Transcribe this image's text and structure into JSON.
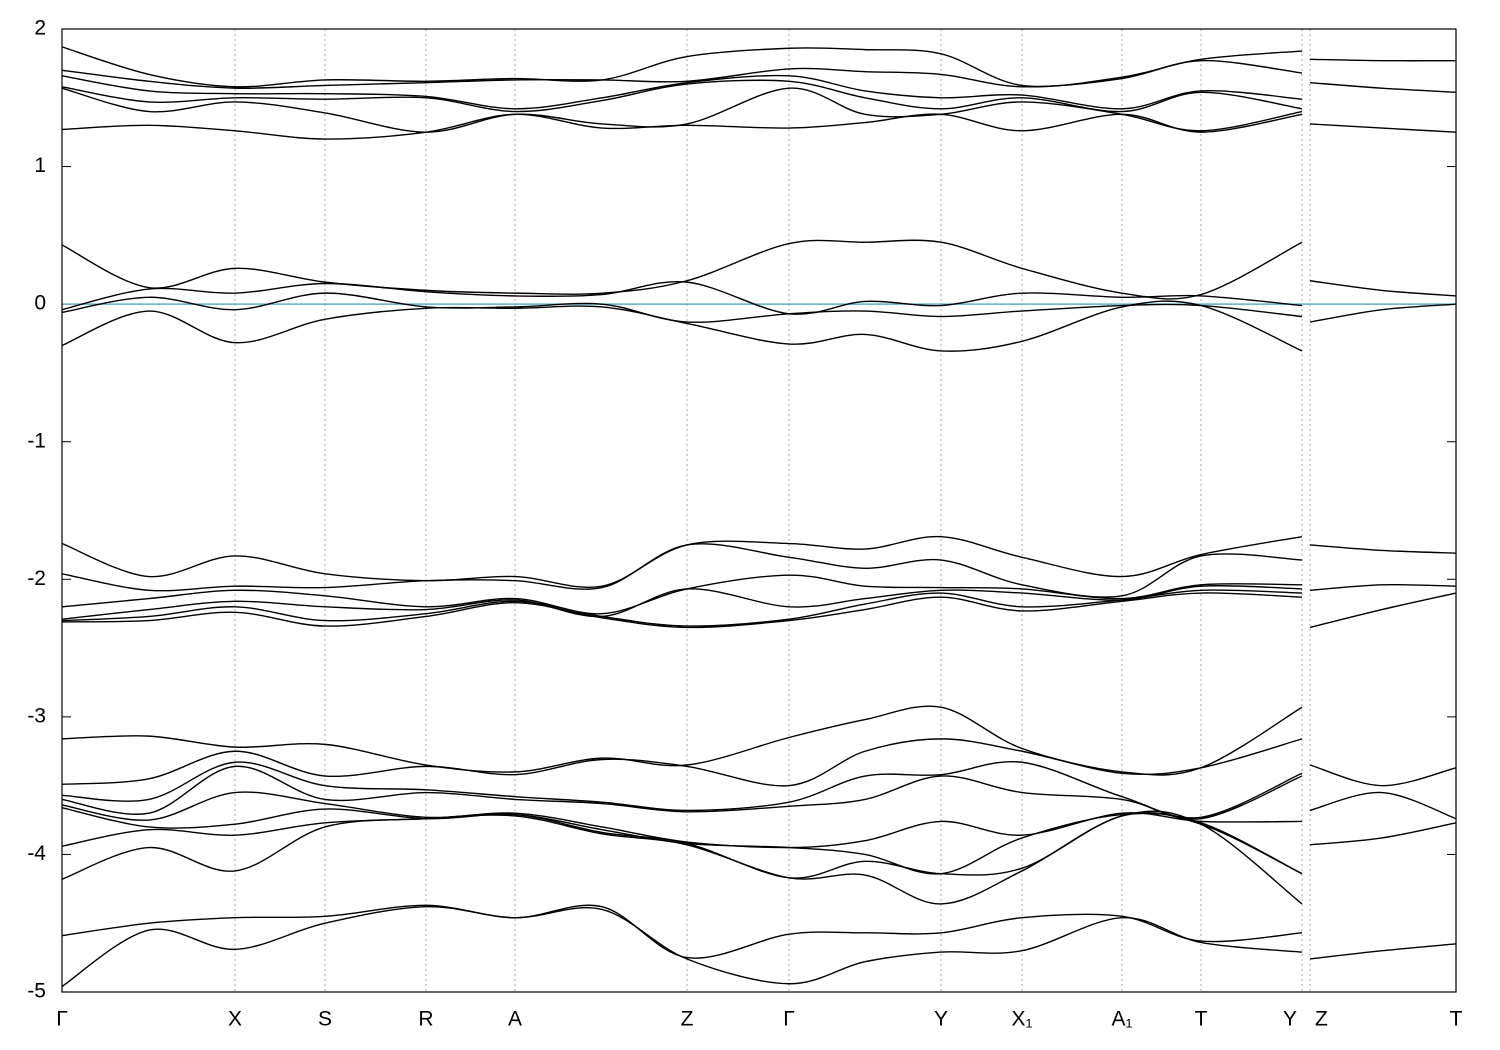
{
  "chart_data": {
    "type": "line",
    "color": "#000000",
    "hline": {
      "value": 0,
      "color": "#5fb0c8"
    },
    "xlim": [
      0,
      13.94
    ],
    "xticks": [
      {
        "value": 0,
        "label": "Γ"
      },
      {
        "value": 1.73,
        "label": "X"
      },
      {
        "value": 2.63,
        "label": "S"
      },
      {
        "value": 3.64,
        "label": "R"
      },
      {
        "value": 4.53,
        "label": "A"
      },
      {
        "value": 6.25,
        "label": "Z"
      },
      {
        "value": 7.27,
        "label": "Γ"
      },
      {
        "value": 8.79,
        "label": "Y"
      },
      {
        "value": 9.6,
        "label": "X₁"
      },
      {
        "value": 10.6,
        "label": "A₁"
      },
      {
        "value": 11.39,
        "label": "T"
      },
      {
        "value": 12.4,
        "label": "Y"
      },
      {
        "value": 12.48,
        "label": "Z"
      },
      {
        "value": 13.94,
        "label": "T"
      }
    ],
    "ylim": [
      -5,
      2
    ],
    "yticks": [
      -5,
      -4,
      -3,
      -2,
      -1,
      0,
      1,
      2
    ],
    "x": [
      0,
      0.87,
      1.73,
      2.63,
      3.64,
      4.53,
      5.4,
      6.25,
      7.27,
      8.03,
      8.79,
      9.6,
      10.6,
      11.39,
      12.4,
      12.44,
      12.48,
      13.2,
      13.94
    ],
    "series": [
      {
        "values": [
          1.87,
          1.67,
          1.58,
          1.63,
          1.62,
          1.64,
          1.63,
          1.8,
          1.86,
          1.85,
          1.82,
          1.59,
          1.65,
          1.78,
          1.84,
          null,
          1.78,
          1.77,
          1.77
        ]
      },
      {
        "values": [
          1.7,
          1.62,
          1.57,
          1.59,
          1.61,
          1.63,
          1.63,
          1.62,
          1.71,
          1.69,
          1.67,
          1.58,
          1.64,
          1.77,
          1.68,
          null,
          1.61,
          1.57,
          1.54
        ]
      },
      {
        "values": [
          1.66,
          1.55,
          1.53,
          1.53,
          1.51,
          1.42,
          1.5,
          1.61,
          1.66,
          1.55,
          1.5,
          1.52,
          1.42,
          1.55,
          1.49,
          null,
          1.31,
          1.28,
          1.25
        ]
      },
      {
        "values": [
          1.58,
          1.47,
          1.5,
          1.49,
          1.5,
          1.4,
          1.48,
          1.6,
          1.62,
          1.5,
          1.42,
          1.5,
          1.4,
          1.54,
          1.42,
          null,
          null,
          null,
          null
        ]
      },
      {
        "values": [
          1.57,
          1.4,
          1.47,
          1.39,
          1.25,
          1.38,
          1.31,
          1.31,
          1.57,
          1.38,
          1.38,
          1.47,
          1.38,
          1.26,
          1.4,
          null,
          null,
          null,
          null
        ]
      },
      {
        "values": [
          1.27,
          1.3,
          1.26,
          1.2,
          1.25,
          1.38,
          1.28,
          1.3,
          1.28,
          1.32,
          1.38,
          1.26,
          1.38,
          1.25,
          1.38,
          null,
          null,
          null,
          null
        ]
      },
      {
        "values": [
          0.43,
          0.12,
          0.26,
          0.16,
          0.1,
          0.08,
          0.08,
          0.17,
          0.44,
          0.45,
          0.45,
          0.26,
          0.08,
          0.07,
          0.45,
          null,
          0.17,
          0.1,
          0.06
        ]
      },
      {
        "values": [
          -0.04,
          0.11,
          0.08,
          0.15,
          0.09,
          0.06,
          0.07,
          0.16,
          -0.07,
          0.02,
          -0.01,
          0.08,
          0.05,
          0.06,
          -0.01,
          null,
          -0.13,
          -0.04,
          0.0
        ]
      },
      {
        "values": [
          -0.06,
          0.05,
          -0.04,
          0.08,
          -0.02,
          -0.02,
          0.0,
          -0.13,
          -0.07,
          -0.05,
          -0.09,
          -0.05,
          -0.01,
          -0.01,
          -0.09,
          null,
          null,
          null,
          null
        ]
      },
      {
        "values": [
          -0.3,
          -0.05,
          -0.28,
          -0.11,
          -0.03,
          -0.03,
          -0.02,
          -0.14,
          -0.29,
          -0.22,
          -0.34,
          -0.27,
          -0.02,
          -0.01,
          -0.34,
          null,
          null,
          null,
          null
        ]
      },
      {
        "values": [
          -1.74,
          -1.98,
          -1.83,
          -1.96,
          -2.01,
          -1.98,
          -2.05,
          -1.75,
          -1.74,
          -1.78,
          -1.69,
          -1.84,
          -1.98,
          -1.82,
          -1.69,
          null,
          -1.75,
          -1.79,
          -1.81
        ]
      },
      {
        "values": [
          -1.96,
          -2.08,
          -2.05,
          -2.06,
          -2.01,
          -2.01,
          -2.06,
          -1.75,
          -1.84,
          -1.92,
          -1.86,
          -2.04,
          -2.12,
          -1.83,
          -1.86,
          null,
          -2.08,
          -2.04,
          -2.05
        ]
      },
      {
        "values": [
          -2.2,
          -2.14,
          -2.08,
          -2.12,
          -2.2,
          -2.14,
          -2.25,
          -2.07,
          -1.97,
          -2.05,
          -2.06,
          -2.07,
          -2.14,
          -2.04,
          -2.04,
          null,
          -2.35,
          -2.22,
          -2.1
        ]
      },
      {
        "values": [
          -2.29,
          -2.22,
          -2.16,
          -2.2,
          -2.22,
          -2.15,
          -2.27,
          -2.07,
          -2.2,
          -2.14,
          -2.08,
          -2.1,
          -2.15,
          -2.05,
          -2.07,
          null,
          null,
          null,
          null
        ]
      },
      {
        "values": [
          -2.3,
          -2.27,
          -2.2,
          -2.3,
          -2.25,
          -2.16,
          -2.27,
          -2.34,
          -2.29,
          -2.18,
          -2.1,
          -2.2,
          -2.15,
          -2.08,
          -2.1,
          null,
          null,
          null,
          null
        ]
      },
      {
        "values": [
          -2.31,
          -2.3,
          -2.24,
          -2.34,
          -2.27,
          -2.17,
          -2.28,
          -2.35,
          -2.3,
          -2.22,
          -2.13,
          -2.23,
          -2.16,
          -2.1,
          -2.13,
          null,
          null,
          null,
          null
        ]
      },
      {
        "values": [
          -3.16,
          -3.14,
          -3.22,
          -3.2,
          -3.35,
          -3.4,
          -3.3,
          -3.35,
          -3.15,
          -3.02,
          -2.93,
          -3.23,
          -3.4,
          -3.37,
          -2.93,
          null,
          -3.35,
          -3.5,
          -3.37
        ]
      },
      {
        "values": [
          -3.49,
          -3.45,
          -3.25,
          -3.43,
          -3.36,
          -3.42,
          -3.31,
          -3.36,
          -3.5,
          -3.25,
          -3.16,
          -3.25,
          -3.41,
          -3.37,
          -3.16,
          null,
          -3.68,
          -3.55,
          -3.74
        ]
      },
      {
        "values": [
          -3.57,
          -3.6,
          -3.33,
          -3.5,
          -3.53,
          -3.58,
          -3.62,
          -3.68,
          -3.62,
          -3.43,
          -3.42,
          -3.33,
          -3.58,
          -3.73,
          -3.41,
          null,
          -3.93,
          -3.88,
          -3.77
        ]
      },
      {
        "values": [
          -3.6,
          -3.7,
          -3.36,
          -3.6,
          -3.55,
          -3.6,
          -3.63,
          -3.69,
          -3.65,
          -3.6,
          -3.43,
          -3.55,
          -3.6,
          -3.74,
          -3.43,
          null,
          null,
          null,
          null
        ]
      },
      {
        "values": [
          -3.64,
          -3.75,
          -3.55,
          -3.63,
          -3.73,
          -3.7,
          -3.8,
          -3.91,
          -3.95,
          -3.9,
          -3.76,
          -3.86,
          -3.7,
          -3.76,
          -3.76,
          null,
          null,
          null,
          null
        ]
      },
      {
        "values": [
          -3.66,
          -3.8,
          -3.78,
          -3.67,
          -3.74,
          -3.71,
          -3.82,
          -3.92,
          -3.95,
          -4.0,
          -4.14,
          -3.88,
          -3.71,
          -3.77,
          -4.14,
          null,
          null,
          null,
          null
        ]
      },
      {
        "values": [
          -3.94,
          -3.82,
          -3.86,
          -3.77,
          -3.74,
          -3.71,
          -3.84,
          -3.92,
          -4.17,
          -4.05,
          -4.14,
          -4.1,
          -3.72,
          -3.78,
          -4.14,
          null,
          null,
          null,
          null
        ]
      },
      {
        "values": [
          -4.18,
          -3.95,
          -4.12,
          -3.8,
          -3.74,
          -3.72,
          -3.85,
          -3.93,
          -4.17,
          -4.15,
          -4.36,
          -4.12,
          -3.72,
          -3.78,
          -4.36,
          null,
          null,
          null,
          null
        ]
      },
      {
        "values": [
          -4.59,
          -4.5,
          -4.46,
          -4.45,
          -4.37,
          -4.46,
          -4.38,
          -4.75,
          -4.58,
          -4.57,
          -4.57,
          -4.46,
          -4.45,
          -4.63,
          -4.57,
          null,
          -4.76,
          -4.7,
          -4.65
        ]
      },
      {
        "values": [
          -4.96,
          -4.55,
          -4.69,
          -4.5,
          -4.38,
          -4.46,
          -4.4,
          -4.76,
          -4.94,
          -4.78,
          -4.71,
          -4.7,
          -4.46,
          -4.64,
          -4.71,
          null,
          null,
          null,
          null
        ]
      }
    ]
  }
}
